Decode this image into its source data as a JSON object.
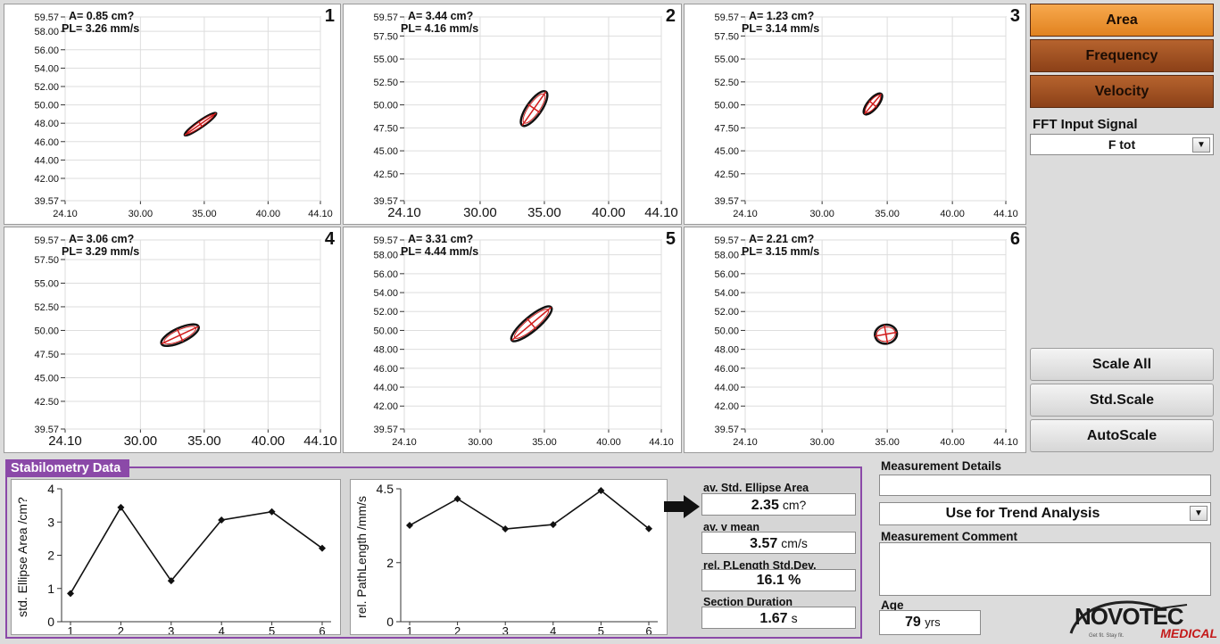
{
  "side": {
    "area": "Area",
    "frequency": "Frequency",
    "velocity": "Velocity",
    "fft_label": "FFT Input Signal",
    "fft_value": "F tot",
    "scale_all": "Scale All",
    "std_scale": "Std.Scale",
    "auto_scale": "AutoScale"
  },
  "panels": [
    {
      "num": "1",
      "area": "A=  0.85 cm?",
      "pl": "PL= 3.26 mm/s",
      "yticks": [
        "59.57",
        "58.00",
        "56.00",
        "54.00",
        "52.00",
        "50.00",
        "48.00",
        "46.00",
        "44.00",
        "42.00",
        "39.57"
      ],
      "xticks": [
        "24.10",
        "30.00",
        "35.00",
        "40.00",
        "44.10"
      ],
      "xsize": "small",
      "ellipse": {
        "cx": 34.7,
        "cy": 47.9,
        "rx": 1.5,
        "ry": 0.35,
        "angle": -35,
        "color": "#d21c1c"
      }
    },
    {
      "num": "2",
      "area": "A=  3.44 cm?",
      "pl": "PL= 4.16 mm/s",
      "yticks": [
        "59.57",
        "57.50",
        "55.00",
        "52.50",
        "50.00",
        "47.50",
        "45.00",
        "42.50",
        "39.57"
      ],
      "xticks": [
        "24.10",
        "30.00",
        "35.00",
        "40.00",
        "44.10"
      ],
      "xsize": "large",
      "ellipse": {
        "cx": 34.2,
        "cy": 49.6,
        "rx": 1.6,
        "ry": 0.8,
        "angle": -55,
        "color": "#d21c1c"
      }
    },
    {
      "num": "3",
      "area": "A=  1.23 cm?",
      "pl": "PL= 3.14 mm/s",
      "yticks": [
        "59.57",
        "57.50",
        "55.00",
        "52.50",
        "50.00",
        "47.50",
        "45.00",
        "42.50",
        "39.57"
      ],
      "xticks": [
        "24.10",
        "30.00",
        "35.00",
        "40.00",
        "44.10"
      ],
      "xsize": "small",
      "ellipse": {
        "cx": 33.9,
        "cy": 50.1,
        "rx": 1.0,
        "ry": 0.55,
        "angle": -50,
        "color": "#d21c1c"
      }
    },
    {
      "num": "4",
      "area": "A=  3.06 cm?",
      "pl": "PL= 3.29 mm/s",
      "yticks": [
        "59.57",
        "57.50",
        "55.00",
        "52.50",
        "50.00",
        "47.50",
        "45.00",
        "42.50",
        "39.57"
      ],
      "xticks": [
        "24.10",
        "30.00",
        "35.00",
        "40.00",
        "44.10"
      ],
      "xsize": "large",
      "ellipse": {
        "cx": 33.1,
        "cy": 49.5,
        "rx": 1.6,
        "ry": 0.75,
        "angle": -25,
        "color": "#d21c1c"
      }
    },
    {
      "num": "5",
      "area": "A=  3.31 cm?",
      "pl": "PL= 4.44 mm/s",
      "yticks": [
        "59.57",
        "58.00",
        "56.00",
        "54.00",
        "52.00",
        "50.00",
        "48.00",
        "46.00",
        "44.00",
        "42.00",
        "39.57"
      ],
      "xticks": [
        "24.10",
        "30.00",
        "35.00",
        "40.00",
        "44.10"
      ],
      "xsize": "small",
      "ellipse": {
        "cx": 34.0,
        "cy": 50.7,
        "rx": 2.0,
        "ry": 0.75,
        "angle": -40,
        "color": "#d21c1c"
      }
    },
    {
      "num": "6",
      "area": "A=  2.21 cm?",
      "pl": "PL= 3.15 mm/s",
      "yticks": [
        "59.57",
        "58.00",
        "56.00",
        "54.00",
        "52.00",
        "50.00",
        "48.00",
        "46.00",
        "44.00",
        "42.00",
        "39.57"
      ],
      "xticks": [
        "24.10",
        "30.00",
        "35.00",
        "40.00",
        "44.10"
      ],
      "xsize": "small",
      "ellipse": {
        "cx": 34.9,
        "cy": 49.6,
        "rx": 0.85,
        "ry": 1.0,
        "angle": -10,
        "color": "#d21c1c"
      }
    }
  ],
  "stab": {
    "title": "Stabilometry Data",
    "charts": [
      {
        "ylabel": "std. Ellipse Area /cm?",
        "yticks": [
          "4",
          "3",
          "2",
          "1",
          "0"
        ],
        "xticks": [
          "1",
          "2",
          "3",
          "4",
          "5",
          "6"
        ],
        "ymax": 4,
        "values": [
          0.85,
          3.44,
          1.23,
          3.06,
          3.31,
          2.21
        ]
      },
      {
        "ylabel": "rel. PathLength /mm/s",
        "yticks": [
          "4.5",
          "2",
          "0"
        ],
        "xticks": [
          "1",
          "2",
          "3",
          "4",
          "5",
          "6"
        ],
        "ymax": 4.5,
        "values": [
          3.26,
          4.16,
          3.14,
          3.29,
          4.44,
          3.15
        ]
      }
    ],
    "stats": {
      "ellipse_label": "av. Std. Ellipse Area",
      "ellipse_value": "2.35",
      "ellipse_unit": "cm?",
      "vmean_label": "av. v mean",
      "vmean_value": "3.57",
      "vmean_unit": "cm/s",
      "pl_label": "rel. P.Length Std.Dev.",
      "pl_value": "16.1 %",
      "duration_label": "Section Duration",
      "duration_value": "1.67",
      "duration_unit": "s"
    }
  },
  "details": {
    "title": "Measurement Details",
    "trend": "Use for Trend Analysis",
    "comment_title": "Measurement Comment",
    "age_label": "Age",
    "age_value": "79",
    "age_unit": "yrs"
  },
  "logo": {
    "text": "NOVOTEC",
    "sub": "MEDICAL",
    "tag": "Get fit. Stay fit."
  }
}
